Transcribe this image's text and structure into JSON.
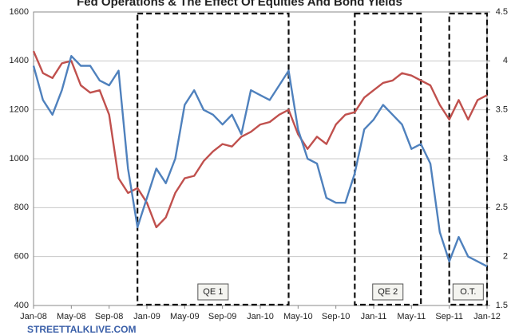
{
  "chart_data": {
    "type": "line",
    "title": "Fed Operations & The Effect Of Equities And Bond Yields",
    "x": [
      "Jan-08",
      "Feb-08",
      "Mar-08",
      "Apr-08",
      "May-08",
      "Jun-08",
      "Jul-08",
      "Aug-08",
      "Sep-08",
      "Oct-08",
      "Nov-08",
      "Dec-08",
      "Jan-09",
      "Feb-09",
      "Mar-09",
      "Apr-09",
      "May-09",
      "Jun-09",
      "Jul-09",
      "Aug-09",
      "Sep-09",
      "Oct-09",
      "Nov-09",
      "Dec-09",
      "Jan-10",
      "Feb-10",
      "Mar-10",
      "Apr-10",
      "May-10",
      "Jun-10",
      "Jul-10",
      "Aug-10",
      "Sep-10",
      "Oct-10",
      "Nov-10",
      "Dec-10",
      "Jan-11",
      "Feb-11",
      "Mar-11",
      "Apr-11",
      "May-11",
      "Jun-11",
      "Jul-11",
      "Aug-11",
      "Sep-11",
      "Oct-11",
      "Nov-11",
      "Dec-11",
      "Jan-12"
    ],
    "xtick_every": 4,
    "series": [
      {
        "color": "#c0504d",
        "axis": "y",
        "values": [
          1440,
          1350,
          1330,
          1390,
          1400,
          1300,
          1270,
          1280,
          1180,
          920,
          860,
          880,
          820,
          720,
          760,
          860,
          920,
          930,
          990,
          1030,
          1060,
          1050,
          1090,
          1110,
          1140,
          1150,
          1180,
          1200,
          1100,
          1040,
          1090,
          1060,
          1140,
          1180,
          1190,
          1250,
          1280,
          1310,
          1320,
          1350,
          1340,
          1320,
          1300,
          1220,
          1160,
          1240,
          1160,
          1240,
          1260
        ]
      },
      {
        "color": "#4f81bd",
        "axis": "y2",
        "values": [
          3.95,
          3.6,
          3.45,
          3.7,
          4.05,
          3.95,
          3.95,
          3.8,
          3.75,
          3.9,
          2.9,
          2.3,
          2.6,
          2.9,
          2.75,
          3.0,
          3.55,
          3.7,
          3.5,
          3.45,
          3.35,
          3.45,
          3.25,
          3.7,
          3.65,
          3.6,
          3.75,
          3.9,
          3.3,
          3.0,
          2.95,
          2.6,
          2.55,
          2.55,
          2.85,
          3.3,
          3.4,
          3.55,
          3.45,
          3.35,
          3.1,
          3.15,
          2.95,
          2.25,
          1.95,
          2.2,
          2.0,
          1.95,
          1.9
        ]
      }
    ],
    "ylim": [
      400,
      1600
    ],
    "yticks": [
      400,
      600,
      800,
      1000,
      1200,
      1400,
      1600
    ],
    "y2lim": [
      1.5,
      4.5
    ],
    "y2ticks": [
      1.5,
      2,
      2.5,
      3,
      3.5,
      4,
      4.5
    ],
    "grid": true,
    "annotations": [
      {
        "label": "QE 1",
        "start": "Dec-08",
        "end": "Apr-10"
      },
      {
        "label": "QE 2",
        "start": "Nov-10",
        "end": "Jun-11"
      },
      {
        "label": "O.T.",
        "start": "Sep-11",
        "end": "Jan-12"
      }
    ],
    "source": "STREETTALKLIVE.COM"
  }
}
